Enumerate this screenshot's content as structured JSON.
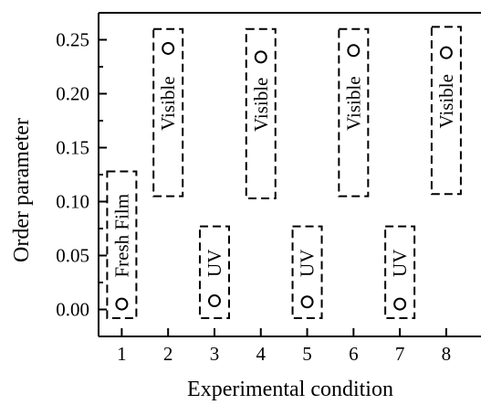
{
  "chart_data": {
    "type": "scatter",
    "title": "",
    "xlabel": "Experimental condition",
    "ylabel": "Order parameter",
    "xlim": [
      0.5,
      8.75
    ],
    "ylim": [
      -0.025,
      0.275
    ],
    "x_ticks": [
      "1",
      "2",
      "3",
      "4",
      "5",
      "6",
      "7",
      "8"
    ],
    "y_ticks": [
      "0.00",
      "0.05",
      "0.10",
      "0.15",
      "0.20",
      "0.25"
    ],
    "marker": "open-circle",
    "series": [
      {
        "x": [
          1,
          2,
          3,
          4,
          5,
          6,
          7,
          8
        ],
        "y": [
          0.005,
          0.242,
          0.008,
          0.234,
          0.007,
          0.24,
          0.005,
          0.238
        ]
      }
    ],
    "annotations": [
      {
        "x": 1,
        "text": "Fresh Film",
        "box_y": [
          -0.008,
          0.128
        ]
      },
      {
        "x": 2,
        "text": "Visible",
        "box_y": [
          0.105,
          0.26
        ]
      },
      {
        "x": 3,
        "text": "UV",
        "box_y": [
          -0.008,
          0.077
        ]
      },
      {
        "x": 4,
        "text": "Visible",
        "box_y": [
          0.103,
          0.26
        ]
      },
      {
        "x": 5,
        "text": "UV",
        "box_y": [
          -0.008,
          0.077
        ]
      },
      {
        "x": 6,
        "text": "Visible",
        "box_y": [
          0.105,
          0.26
        ]
      },
      {
        "x": 7,
        "text": "UV",
        "box_y": [
          -0.008,
          0.077
        ]
      },
      {
        "x": 8,
        "text": "Visible",
        "box_y": [
          0.107,
          0.262
        ]
      }
    ]
  }
}
